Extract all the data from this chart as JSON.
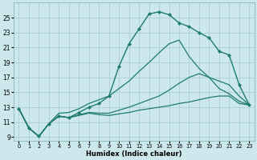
{
  "xlabel": "Humidex (Indice chaleur)",
  "bg_color": "#cce8ec",
  "grid_color": "#aacdd4",
  "line_color": "#1e7b6e",
  "xlim": [
    -0.5,
    23.5
  ],
  "ylim": [
    8.5,
    27
  ],
  "xticks": [
    0,
    1,
    2,
    3,
    4,
    5,
    6,
    7,
    8,
    9,
    10,
    11,
    12,
    13,
    14,
    15,
    16,
    17,
    18,
    19,
    20,
    21,
    22,
    23
  ],
  "yticks": [
    9,
    11,
    13,
    15,
    17,
    19,
    21,
    23,
    25
  ],
  "series": [
    {
      "x": [
        0,
        1,
        2,
        3,
        4,
        5,
        6,
        7,
        8,
        9,
        10,
        11,
        12,
        13,
        14,
        15,
        16,
        17,
        18,
        19,
        20,
        21,
        22,
        23
      ],
      "y": [
        12.8,
        10.2,
        9.1,
        10.8,
        11.8,
        11.6,
        11.9,
        12.2,
        12.0,
        11.9,
        12.1,
        12.3,
        12.6,
        12.8,
        13.0,
        13.2,
        13.5,
        13.7,
        14.0,
        14.3,
        14.5,
        14.5,
        13.5,
        13.3
      ],
      "marker": false,
      "linewidth": 0.9
    },
    {
      "x": [
        0,
        1,
        2,
        3,
        4,
        5,
        6,
        7,
        8,
        9,
        10,
        11,
        12,
        13,
        14,
        15,
        16,
        17,
        18,
        19,
        20,
        21,
        22,
        23
      ],
      "y": [
        12.8,
        10.2,
        9.1,
        10.8,
        11.8,
        11.6,
        12.0,
        12.3,
        12.2,
        12.2,
        12.6,
        13.0,
        13.5,
        14.0,
        14.5,
        15.3,
        16.2,
        17.0,
        17.5,
        17.0,
        15.5,
        14.8,
        13.8,
        13.3
      ],
      "marker": false,
      "linewidth": 0.9
    },
    {
      "x": [
        0,
        1,
        2,
        3,
        4,
        5,
        6,
        7,
        8,
        9,
        10,
        11,
        12,
        13,
        14,
        15,
        16,
        17,
        18,
        19,
        20,
        21,
        22,
        23
      ],
      "y": [
        12.8,
        10.2,
        9.1,
        10.8,
        11.8,
        11.6,
        12.3,
        13.0,
        13.5,
        14.5,
        18.5,
        21.5,
        23.5,
        25.5,
        25.8,
        25.4,
        24.3,
        23.8,
        23.0,
        22.3,
        20.5,
        20.0,
        16.0,
        13.3
      ],
      "marker": true,
      "linewidth": 1.0
    },
    {
      "x": [
        0,
        1,
        2,
        3,
        4,
        5,
        6,
        7,
        8,
        9,
        10,
        11,
        12,
        13,
        14,
        15,
        16,
        17,
        18,
        19,
        20,
        21,
        22,
        23
      ],
      "y": [
        12.8,
        10.2,
        9.1,
        10.8,
        12.2,
        12.3,
        12.8,
        13.5,
        14.0,
        14.5,
        15.5,
        16.5,
        17.8,
        19.0,
        20.3,
        21.5,
        22.0,
        19.8,
        18.2,
        17.0,
        16.5,
        16.0,
        14.5,
        13.3
      ],
      "marker": false,
      "linewidth": 0.9
    }
  ]
}
